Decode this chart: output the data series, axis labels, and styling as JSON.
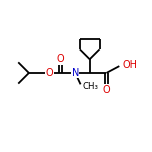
{
  "background_color": "#ffffff",
  "bond_color": "#000000",
  "atom_colors": {
    "O": "#dd0000",
    "N": "#0000cc",
    "C": "#000000"
  },
  "figsize": [
    1.52,
    1.52
  ],
  "dpi": 100,
  "line_width": 1.3,
  "font_size": 7.0,
  "xlim": [
    0,
    10
  ],
  "ylim": [
    0,
    10
  ]
}
